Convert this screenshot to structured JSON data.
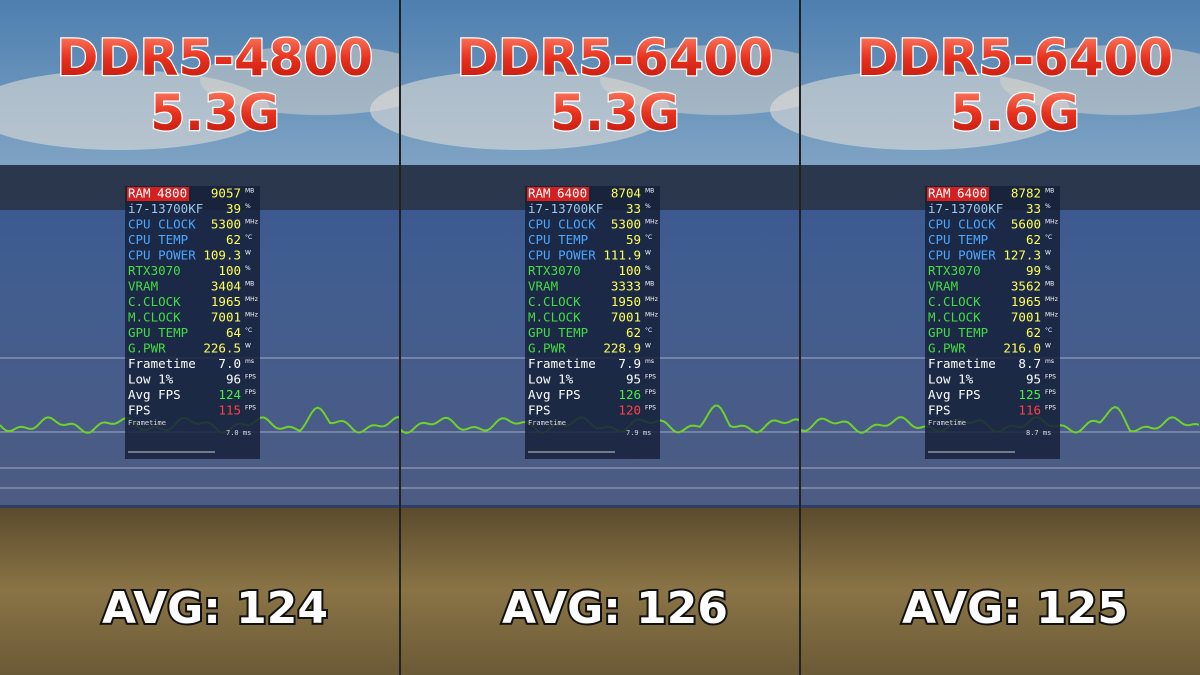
{
  "panels": [
    {
      "memory": "DDR5-4800",
      "clock": "5.3G",
      "osd": {
        "rows": [
          {
            "label": "RAM",
            "tag": "4800",
            "value": "9057",
            "unit": "MB"
          },
          {
            "label": "i7-13700KF",
            "value": "39",
            "unit": "%"
          },
          {
            "label": "CPU CLOCK",
            "value": "5300",
            "unit": "MHz"
          },
          {
            "label": "CPU TEMP",
            "value": "62",
            "unit": "°C"
          },
          {
            "label": "CPU POWER",
            "value": "109.3",
            "unit": "W"
          },
          {
            "label": "RTX3070",
            "value": "100",
            "unit": "%"
          },
          {
            "label": "VRAM",
            "value": "3404",
            "unit": "MB"
          },
          {
            "label": "C.CLOCK",
            "value": "1965",
            "unit": "MHz"
          },
          {
            "label": "M.CLOCK",
            "value": "7001",
            "unit": "MHz"
          },
          {
            "label": "GPU TEMP",
            "value": "64",
            "unit": "°C"
          },
          {
            "label": "G.PWR",
            "value": "226.5",
            "unit": "W"
          },
          {
            "label": "Frametime",
            "value": "7.0",
            "unit": "ms"
          },
          {
            "label": "Low 1%",
            "value": "96",
            "unit": "FPS"
          },
          {
            "label": "Avg FPS",
            "value": "124",
            "unit": "FPS"
          },
          {
            "label": "FPS",
            "value": "115",
            "unit": "FPS"
          }
        ],
        "graph_label": "Frametime",
        "graph_value": "7.0 ms"
      },
      "average": "AVG: 124"
    },
    {
      "memory": "DDR5-6400",
      "clock": "5.3G",
      "osd": {
        "rows": [
          {
            "label": "RAM",
            "tag": "6400",
            "value": "8704",
            "unit": "MB"
          },
          {
            "label": "i7-13700KF",
            "value": "33",
            "unit": "%"
          },
          {
            "label": "CPU CLOCK",
            "value": "5300",
            "unit": "MHz"
          },
          {
            "label": "CPU TEMP",
            "value": "59",
            "unit": "°C"
          },
          {
            "label": "CPU POWER",
            "value": "111.9",
            "unit": "W"
          },
          {
            "label": "RTX3070",
            "value": "100",
            "unit": "%"
          },
          {
            "label": "VRAM",
            "value": "3333",
            "unit": "MB"
          },
          {
            "label": "C.CLOCK",
            "value": "1950",
            "unit": "MHz"
          },
          {
            "label": "M.CLOCK",
            "value": "7001",
            "unit": "MHz"
          },
          {
            "label": "GPU TEMP",
            "value": "62",
            "unit": "°C"
          },
          {
            "label": "G.PWR",
            "value": "228.9",
            "unit": "W"
          },
          {
            "label": "Frametime",
            "value": "7.9",
            "unit": "ms"
          },
          {
            "label": "Low 1%",
            "value": "95",
            "unit": "FPS"
          },
          {
            "label": "Avg FPS",
            "value": "126",
            "unit": "FPS"
          },
          {
            "label": "FPS",
            "value": "120",
            "unit": "FPS"
          }
        ],
        "graph_label": "Frametime",
        "graph_value": "7.9 ms"
      },
      "average": "AVG: 126"
    },
    {
      "memory": "DDR5-6400",
      "clock": "5.6G",
      "osd": {
        "rows": [
          {
            "label": "RAM",
            "tag": "6400",
            "value": "8782",
            "unit": "MB"
          },
          {
            "label": "i7-13700KF",
            "value": "33",
            "unit": "%"
          },
          {
            "label": "CPU CLOCK",
            "value": "5600",
            "unit": "MHz"
          },
          {
            "label": "CPU TEMP",
            "value": "62",
            "unit": "°C"
          },
          {
            "label": "CPU POWER",
            "value": "127.3",
            "unit": "W"
          },
          {
            "label": "RTX3070",
            "value": "99",
            "unit": "%"
          },
          {
            "label": "VRAM",
            "value": "3562",
            "unit": "MB"
          },
          {
            "label": "C.CLOCK",
            "value": "1965",
            "unit": "MHz"
          },
          {
            "label": "M.CLOCK",
            "value": "7001",
            "unit": "MHz"
          },
          {
            "label": "GPU TEMP",
            "value": "62",
            "unit": "°C"
          },
          {
            "label": "G.PWR",
            "value": "216.0",
            "unit": "W"
          },
          {
            "label": "Frametime",
            "value": "8.7",
            "unit": "ms"
          },
          {
            "label": "Low 1%",
            "value": "95",
            "unit": "FPS"
          },
          {
            "label": "Avg FPS",
            "value": "125",
            "unit": "FPS"
          },
          {
            "label": "FPS",
            "value": "116",
            "unit": "FPS"
          }
        ],
        "graph_label": "Frametime",
        "graph_value": "8.7 ms"
      },
      "average": "AVG: 125"
    }
  ]
}
